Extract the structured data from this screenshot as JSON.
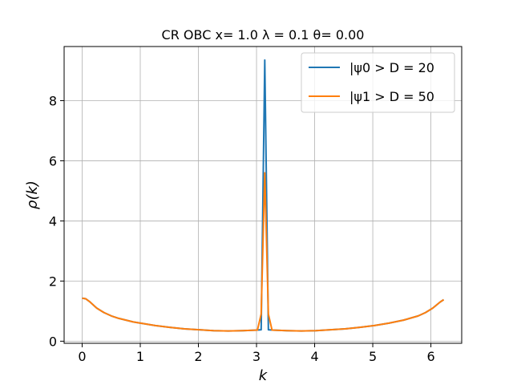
{
  "chart_data": {
    "type": "line",
    "title": "CR OBC x= 1.0 λ = 0.1 θ= 0.00",
    "xlabel": "k",
    "ylabel": "ρ(k)",
    "xlim": [
      -0.31,
      6.53
    ],
    "ylim": [
      -0.07,
      9.8
    ],
    "xticks": [
      0,
      1,
      2,
      3,
      4,
      5,
      6
    ],
    "yticks": [
      0,
      2,
      4,
      6,
      8
    ],
    "grid": true,
    "legend_position": "top-right",
    "series": [
      {
        "name": "|ψ0 > D = 20",
        "color": "#1f77b4",
        "x": [
          0.0,
          0.0628,
          0.126,
          0.251,
          0.377,
          0.503,
          0.628,
          0.754,
          0.88,
          1.005,
          1.257,
          1.508,
          1.759,
          2.011,
          2.262,
          2.513,
          2.765,
          3.016,
          3.08,
          3.08,
          3.142,
          3.142,
          3.204,
          3.204,
          3.267,
          3.519,
          3.77,
          4.021,
          4.273,
          4.524,
          4.775,
          5.027,
          5.278,
          5.529,
          5.781,
          5.906,
          6.032,
          6.158,
          6.22
        ],
        "values": [
          1.43,
          1.41,
          1.32,
          1.1,
          0.95,
          0.84,
          0.76,
          0.7,
          0.64,
          0.6,
          0.52,
          0.46,
          0.41,
          0.38,
          0.35,
          0.34,
          0.35,
          0.37,
          0.38,
          0.38,
          9.35,
          9.35,
          0.38,
          0.38,
          0.37,
          0.35,
          0.34,
          0.35,
          0.38,
          0.41,
          0.46,
          0.52,
          0.6,
          0.7,
          0.84,
          0.95,
          1.1,
          1.3,
          1.38
        ]
      },
      {
        "name": "|ψ1 > D = 50",
        "color": "#ff7f0e",
        "x": [
          0.0,
          0.0628,
          0.126,
          0.251,
          0.377,
          0.503,
          0.628,
          0.754,
          0.88,
          1.005,
          1.257,
          1.508,
          1.759,
          2.011,
          2.262,
          2.513,
          2.765,
          3.016,
          3.08,
          3.142,
          3.204,
          3.267,
          3.519,
          3.77,
          4.021,
          4.273,
          4.524,
          4.775,
          5.027,
          5.278,
          5.529,
          5.781,
          5.906,
          6.032,
          6.158,
          6.22
        ],
        "values": [
          1.43,
          1.41,
          1.32,
          1.1,
          0.95,
          0.84,
          0.76,
          0.7,
          0.64,
          0.6,
          0.52,
          0.46,
          0.41,
          0.38,
          0.35,
          0.34,
          0.35,
          0.37,
          0.9,
          5.6,
          0.9,
          0.37,
          0.35,
          0.34,
          0.35,
          0.38,
          0.41,
          0.46,
          0.52,
          0.6,
          0.7,
          0.84,
          0.95,
          1.1,
          1.3,
          1.38
        ]
      }
    ]
  }
}
